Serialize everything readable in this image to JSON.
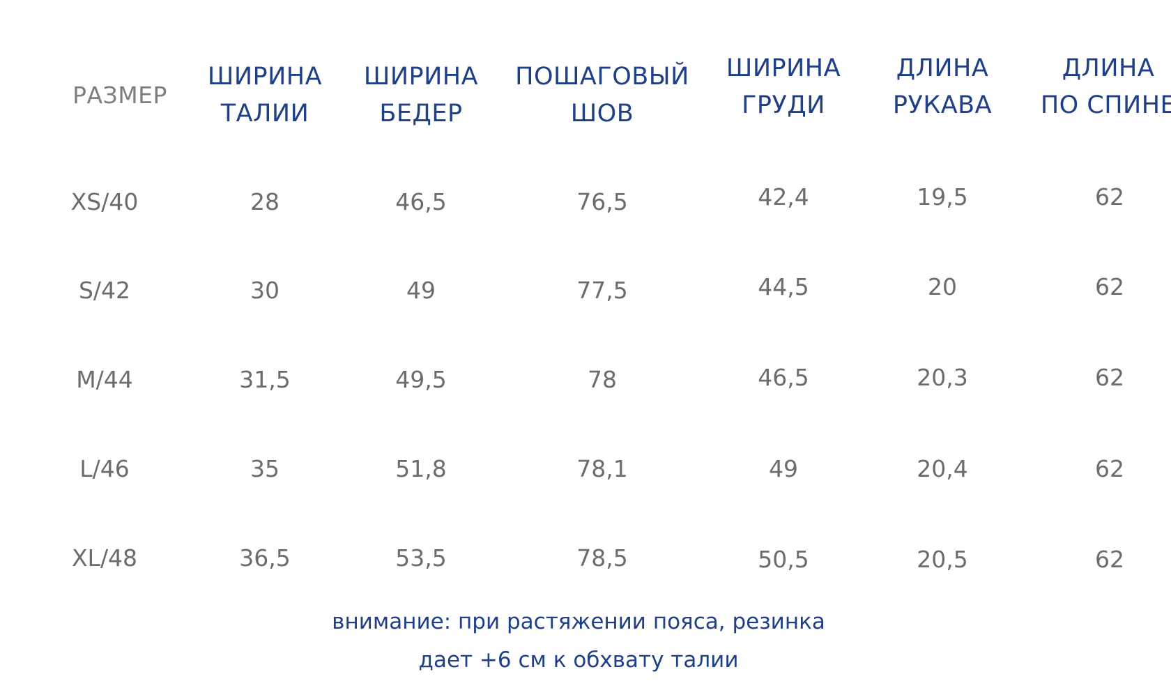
{
  "table": {
    "headers": [
      {
        "lines": [
          "РАЗМЕР"
        ]
      },
      {
        "lines": [
          "ШИРИНА",
          "ТАЛИИ"
        ]
      },
      {
        "lines": [
          "ШИРИНА",
          "БЕДЕР"
        ]
      },
      {
        "lines": [
          "ПОШАГОВЫЙ",
          "ШОВ"
        ]
      },
      {
        "lines": [
          "ШИРИНА",
          "ГРУДИ"
        ]
      },
      {
        "lines": [
          "ДЛИНА",
          "РУКАВА"
        ]
      },
      {
        "lines": [
          "ДЛИНА",
          "ПО СПИНЕ"
        ]
      }
    ],
    "rows": [
      [
        "XS/40",
        "28",
        "46,5",
        "76,5",
        "42,4",
        "19,5",
        "62"
      ],
      [
        "S/42",
        "30",
        "49",
        "77,5",
        "44,5",
        "20",
        "62"
      ],
      [
        "M/44",
        "31,5",
        "49,5",
        "78",
        "46,5",
        "20,3",
        "62"
      ],
      [
        "L/46",
        "35",
        "51,8",
        "78,1",
        "49",
        "20,4",
        "62"
      ],
      [
        "XL/48",
        "36,5",
        "53,5",
        "78,5",
        "50,5",
        "20,5",
        "62"
      ]
    ]
  },
  "note": {
    "line1": "внимание: при растяжении пояса, резинка",
    "line2": "дает +6 см к обхвату талии"
  },
  "colors": {
    "header_blue": "#1f3f87",
    "size_header_gray": "#7e7e7e",
    "value_gray": "#6c6c6c",
    "background": "#ffffff"
  }
}
